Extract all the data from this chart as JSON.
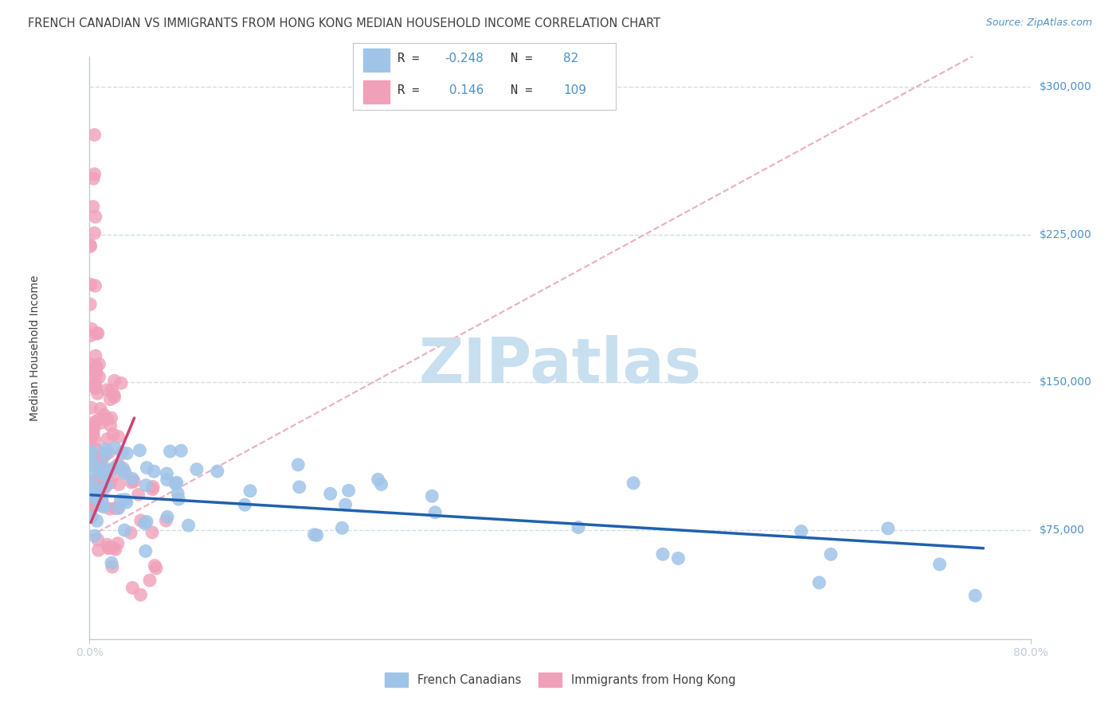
{
  "title": "FRENCH CANADIAN VS IMMIGRANTS FROM HONG KONG MEDIAN HOUSEHOLD INCOME CORRELATION CHART",
  "source": "Source: ZipAtlas.com",
  "ylabel": "Median Household Income",
  "xmin": 0.0,
  "xmax": 0.8,
  "ymin": 20000,
  "ymax": 315000,
  "ytick_vals": [
    75000,
    150000,
    225000,
    300000
  ],
  "ytick_labels": [
    "$75,000",
    "$150,000",
    "$225,000",
    "$300,000"
  ],
  "blue_color": "#a0c4e8",
  "pink_color": "#f0a0b8",
  "blue_line_color": "#2060b0",
  "pink_line_color": "#d04070",
  "pink_diag_color": "#e8a0b0",
  "grid_color": "#d0dde8",
  "axis_color": "#c0ccd8",
  "text_blue": "#5090c8",
  "text_dark": "#404040",
  "watermark_color": "#c8dff0",
  "legend_r1_val": "-0.248",
  "legend_n1_val": "82",
  "legend_r2_val": "0.146",
  "legend_n2_val": "109",
  "title_fontsize": 10.5,
  "tick_fontsize": 10,
  "random_seed": 99
}
